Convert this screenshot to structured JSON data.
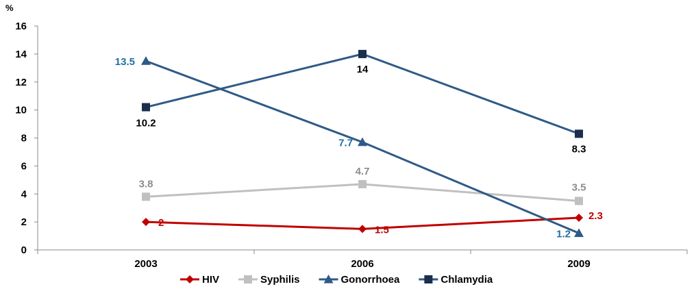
{
  "chart_data": {
    "type": "line",
    "ylabel": "%",
    "ylim": [
      0,
      16
    ],
    "yticks": [
      0,
      2,
      4,
      6,
      8,
      10,
      12,
      14,
      16
    ],
    "categories": [
      "2003",
      "2006",
      "2009"
    ],
    "grid": false,
    "legend_position": "bottom",
    "series": [
      {
        "name": "HIV",
        "values": [
          2,
          1.5,
          2.3
        ],
        "labels": [
          "2",
          "1.5",
          "2.3"
        ],
        "color": "#c00000",
        "label_color": "#c00000",
        "marker": "diamond"
      },
      {
        "name": "Syphilis",
        "values": [
          3.8,
          4.7,
          3.5
        ],
        "labels": [
          "3.8",
          "4.7",
          "3.5"
        ],
        "color": "#c0c0c0",
        "label_color": "#8c8c8c",
        "marker": "square"
      },
      {
        "name": "Gonorrhoea",
        "values": [
          13.5,
          7.7,
          1.2
        ],
        "labels": [
          "13.5",
          "7.7",
          "1.2"
        ],
        "color": "#2e5a87",
        "label_color": "#1f6fa3",
        "marker": "triangle"
      },
      {
        "name": "Chlamydia",
        "values": [
          10.2,
          14,
          8.3
        ],
        "labels": [
          "10.2",
          "14",
          "8.3"
        ],
        "color": "#2e5a87",
        "label_color": "#000000",
        "marker": "square-dark"
      }
    ]
  }
}
